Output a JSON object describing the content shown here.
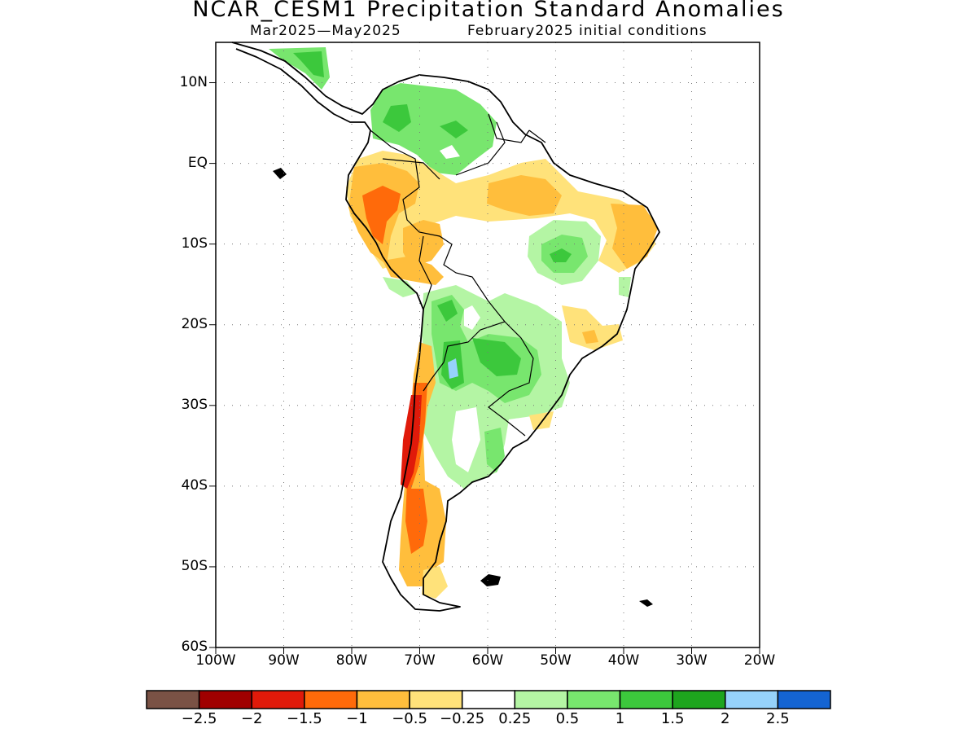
{
  "title": "NCAR_CESM1 Precipitation Standard Anomalies",
  "subtitle_left": "Mar2025—May2025",
  "subtitle_right": "February2025 initial conditions",
  "map": {
    "lat_range": [
      -60,
      15
    ],
    "lon_range": [
      -100,
      -20
    ],
    "y_ticks": [
      "10N",
      "EQ",
      "10S",
      "20S",
      "30S",
      "40S",
      "50S",
      "60S"
    ],
    "x_ticks": [
      "100W",
      "90W",
      "80W",
      "70W",
      "60W",
      "50W",
      "40W",
      "30W",
      "20W"
    ],
    "grid": "dotted"
  },
  "colorbar": {
    "colors": [
      "#7a5245",
      "#a00000",
      "#e01a0a",
      "#ff6a0a",
      "#ffbe3c",
      "#ffe27a",
      "#ffffff",
      "#b4f5a4",
      "#78e66e",
      "#3cc83c",
      "#1ea51e",
      "#96d2fa",
      "#1464d2"
    ],
    "labels": [
      "−2.5",
      "−2",
      "−1.5",
      "−1",
      "−0.5",
      "−0.25",
      "0.25",
      "0.5",
      "1",
      "1.5",
      "2",
      "2.5"
    ]
  }
}
